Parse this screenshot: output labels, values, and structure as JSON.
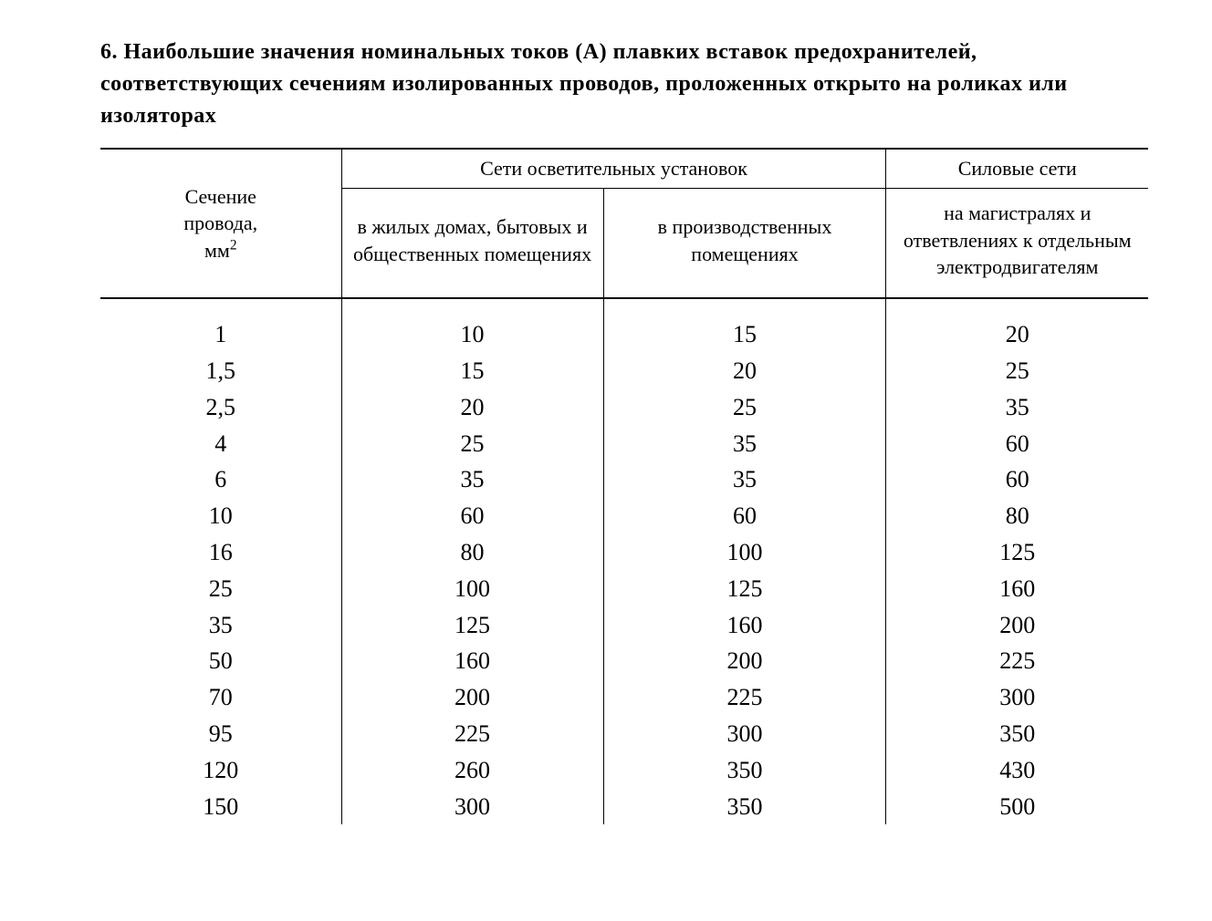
{
  "caption_html": "6. Наибольшие значения номинальных токов (А) плавких вставок предохранителей, соответствующих сечениям изолированных проводов, проложенных открыто на роликах или изоляторах",
  "table": {
    "type": "table",
    "background_color": "#ffffff",
    "border_color": "#000000",
    "header_fontsize": 22,
    "body_fontsize": 26,
    "caption_fontsize": 24,
    "font_family": "Times New Roman",
    "column_widths_pct": [
      23,
      25,
      27,
      25
    ],
    "row_header_label_lines": [
      "Сечение",
      "провода,",
      "мм"
    ],
    "row_header_unit_sup": "2",
    "group_headers": [
      {
        "label": "Сети осветительных установок",
        "span": 2
      },
      {
        "label": "Силовые сети",
        "span": 1
      }
    ],
    "sub_headers": [
      "в жилых домах, бытовых и общественных помещениях",
      "в производственных помещениях",
      "на магистралях и ответвлениях к отдельным электродвигателям"
    ],
    "rows": [
      {
        "section": "1",
        "values": [
          "10",
          "15",
          "20"
        ]
      },
      {
        "section": "1,5",
        "values": [
          "15",
          "20",
          "25"
        ]
      },
      {
        "section": "2,5",
        "values": [
          "20",
          "25",
          "35"
        ]
      },
      {
        "section": "4",
        "values": [
          "25",
          "35",
          "60"
        ]
      },
      {
        "section": "6",
        "values": [
          "35",
          "35",
          "60"
        ]
      },
      {
        "section": "10",
        "values": [
          "60",
          "60",
          "80"
        ]
      },
      {
        "section": "16",
        "values": [
          "80",
          "100",
          "125"
        ]
      },
      {
        "section": "25",
        "values": [
          "100",
          "125",
          "160"
        ]
      },
      {
        "section": "35",
        "values": [
          "125",
          "160",
          "200"
        ]
      },
      {
        "section": "50",
        "values": [
          "160",
          "200",
          "225"
        ]
      },
      {
        "section": "70",
        "values": [
          "200",
          "225",
          "300"
        ]
      },
      {
        "section": "95",
        "values": [
          "225",
          "300",
          "350"
        ]
      },
      {
        "section": "120",
        "values": [
          "260",
          "350",
          "430"
        ]
      },
      {
        "section": "150",
        "values": [
          "300",
          "350",
          "500"
        ]
      }
    ]
  }
}
